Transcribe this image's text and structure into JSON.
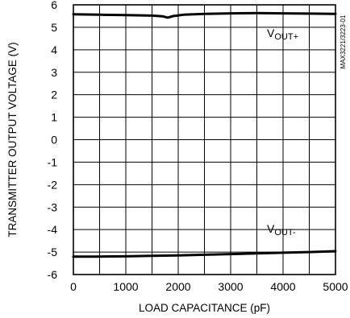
{
  "chart_data": {
    "type": "line",
    "xlabel": "LOAD CAPACITANCE (pF)",
    "ylabel": "TRANSMITTER OUTPUT VOLTAGE (V)",
    "figure_id": "MAX3221/3223-01",
    "xlim": [
      0,
      5000
    ],
    "ylim": [
      -6,
      6
    ],
    "x_ticks": [
      0,
      1000,
      2000,
      3000,
      4000,
      5000
    ],
    "y_ticks": [
      6,
      5,
      4,
      3,
      2,
      1,
      0,
      -1,
      -2,
      -3,
      -4,
      -5,
      -6
    ],
    "grid": true,
    "series": [
      {
        "name": "VOUT+",
        "label_main": "V",
        "label_sub": "OUT+",
        "x": [
          0,
          500,
          1000,
          1500,
          1700,
          1800,
          1900,
          2100,
          2500,
          3000,
          3500,
          4000,
          4500,
          5000
        ],
        "y": [
          5.58,
          5.56,
          5.54,
          5.52,
          5.49,
          5.43,
          5.5,
          5.56,
          5.6,
          5.62,
          5.63,
          5.62,
          5.61,
          5.6
        ]
      },
      {
        "name": "VOUT-",
        "label_main": "V",
        "label_sub": "OUT-",
        "x": [
          0,
          500,
          1000,
          1500,
          2000,
          2500,
          3000,
          3500,
          4000,
          4500,
          5000
        ],
        "y": [
          -5.2,
          -5.2,
          -5.19,
          -5.17,
          -5.15,
          -5.12,
          -5.09,
          -5.06,
          -5.03,
          -5.0,
          -4.96
        ]
      }
    ]
  }
}
